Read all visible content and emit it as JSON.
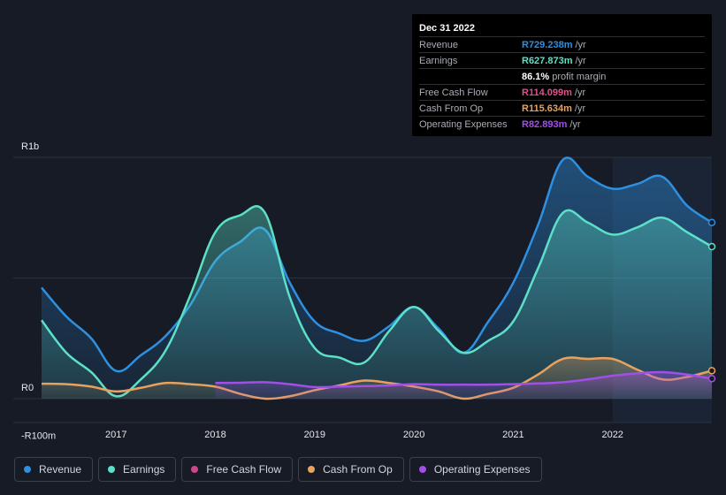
{
  "tooltip": {
    "date": "Dec 31 2022",
    "rows": [
      {
        "label": "Revenue",
        "value": "R729.238m",
        "unit": "/yr",
        "color": "#2f8fe0"
      },
      {
        "label": "Earnings",
        "value": "R627.873m",
        "unit": "/yr",
        "color": "#5ce0c8"
      },
      {
        "label": "",
        "value": "86.1%",
        "unit": "profit margin",
        "color": "#ffffff"
      },
      {
        "label": "Free Cash Flow",
        "value": "R114.099m",
        "unit": "/yr",
        "color": "#e0508c"
      },
      {
        "label": "Cash From Op",
        "value": "R115.634m",
        "unit": "/yr",
        "color": "#e8a25e"
      },
      {
        "label": "Operating Expenses",
        "value": "R82.893m",
        "unit": "/yr",
        "color": "#a24ee8"
      }
    ]
  },
  "legend": [
    {
      "label": "Revenue",
      "color": "#2f8fe0"
    },
    {
      "label": "Earnings",
      "color": "#5ce0c8"
    },
    {
      "label": "Free Cash Flow",
      "color": "#d0448a"
    },
    {
      "label": "Cash From Op",
      "color": "#e8a25e"
    },
    {
      "label": "Operating Expenses",
      "color": "#a24ee8"
    }
  ],
  "chart_data": {
    "type": "area",
    "title": "",
    "xlabel": "",
    "ylabel": "",
    "y_tick_labels": [
      "R1b",
      "R0",
      "-R100m"
    ],
    "y_ticks": [
      1000,
      0,
      -100
    ],
    "ylim": [
      -100,
      1000
    ],
    "xlim": [
      2016.25,
      2023.0
    ],
    "x_tick_labels": [
      "2017",
      "2018",
      "2019",
      "2020",
      "2021",
      "2022"
    ],
    "x_ticks": [
      2017,
      2018,
      2019,
      2020,
      2021,
      2022
    ],
    "gridlines_y": [
      1000,
      500,
      0
    ],
    "highlight_from": 2022.0,
    "series": [
      {
        "name": "Revenue",
        "color": "#2f8fe0",
        "x": [
          2016.25,
          2016.5,
          2016.75,
          2017.0,
          2017.25,
          2017.5,
          2017.75,
          2018.0,
          2018.25,
          2018.5,
          2018.75,
          2019.0,
          2019.25,
          2019.5,
          2019.75,
          2020.0,
          2020.25,
          2020.5,
          2020.75,
          2021.0,
          2021.25,
          2021.5,
          2021.75,
          2022.0,
          2022.25,
          2022.5,
          2022.75,
          2023.0
        ],
        "values": [
          460,
          340,
          250,
          115,
          180,
          260,
          390,
          570,
          650,
          700,
          480,
          320,
          270,
          240,
          300,
          380,
          290,
          190,
          320,
          480,
          720,
          990,
          920,
          870,
          890,
          920,
          800,
          730
        ]
      },
      {
        "name": "Earnings",
        "color": "#5ce0c8",
        "x": [
          2016.25,
          2016.5,
          2016.75,
          2017.0,
          2017.25,
          2017.5,
          2017.75,
          2018.0,
          2018.25,
          2018.5,
          2018.75,
          2019.0,
          2019.25,
          2019.5,
          2019.75,
          2020.0,
          2020.25,
          2020.5,
          2020.75,
          2021.0,
          2021.25,
          2021.5,
          2021.75,
          2022.0,
          2022.25,
          2022.5,
          2022.75,
          2023.0
        ],
        "values": [
          325,
          190,
          110,
          10,
          80,
          200,
          430,
          690,
          760,
          770,
          420,
          210,
          170,
          150,
          280,
          380,
          280,
          190,
          240,
          320,
          540,
          770,
          730,
          680,
          710,
          750,
          690,
          630
        ]
      },
      {
        "name": "Free Cash Flow",
        "color": "#d0448a",
        "x": [
          2016.25,
          2017.0,
          2018.0,
          2019.0,
          2020.0,
          2021.0,
          2021.5,
          2022.0,
          2022.5,
          2023.0
        ],
        "values": [
          62,
          45,
          60,
          20,
          50,
          30,
          160,
          160,
          75,
          115
        ]
      },
      {
        "name": "Cash From Op",
        "color": "#e8a25e",
        "x": [
          2016.25,
          2016.5,
          2016.75,
          2017.0,
          2017.25,
          2017.5,
          2017.75,
          2018.0,
          2018.25,
          2018.5,
          2018.75,
          2019.0,
          2019.25,
          2019.5,
          2019.75,
          2020.0,
          2020.25,
          2020.5,
          2020.75,
          2021.0,
          2021.25,
          2021.5,
          2021.75,
          2022.0,
          2022.25,
          2022.5,
          2022.75,
          2023.0
        ],
        "values": [
          62,
          60,
          50,
          30,
          45,
          65,
          60,
          50,
          20,
          0,
          10,
          35,
          55,
          75,
          65,
          50,
          30,
          0,
          20,
          45,
          100,
          165,
          165,
          165,
          120,
          80,
          90,
          116
        ]
      },
      {
        "name": "Operating Expenses",
        "color": "#a24ee8",
        "x": [
          2018.0,
          2018.25,
          2018.5,
          2018.75,
          2019.0,
          2019.25,
          2019.5,
          2019.75,
          2020.0,
          2020.25,
          2020.5,
          2020.75,
          2021.0,
          2021.25,
          2021.5,
          2021.75,
          2022.0,
          2022.25,
          2022.5,
          2022.75,
          2023.0
        ],
        "values": [
          65,
          66,
          68,
          60,
          48,
          50,
          52,
          55,
          60,
          58,
          58,
          58,
          60,
          63,
          68,
          80,
          95,
          105,
          110,
          100,
          83
        ]
      }
    ]
  }
}
